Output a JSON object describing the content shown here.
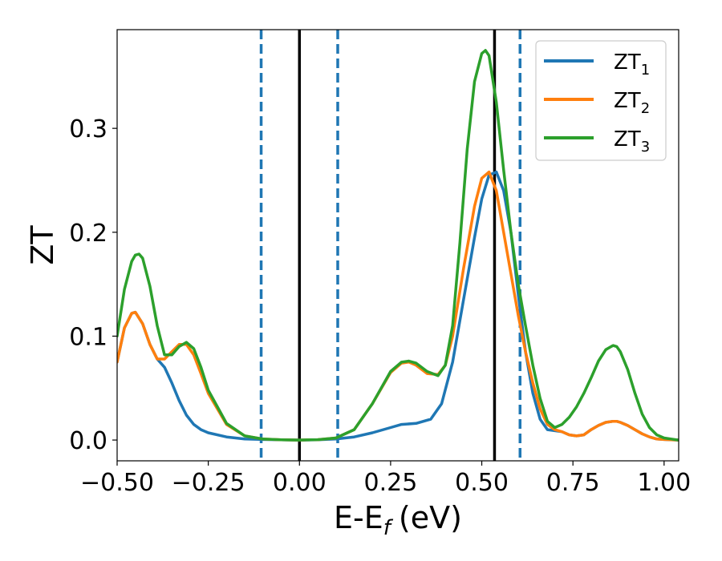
{
  "chart_data": {
    "type": "line",
    "xlabel": "E-E",
    "xlabel_sub": "f",
    "xlabel_unit": "(eV)",
    "ylabel": "ZT",
    "xlim": [
      -0.5,
      1.04
    ],
    "ylim": [
      -0.02,
      0.395
    ],
    "xticks": [
      -0.5,
      -0.25,
      0.0,
      0.25,
      0.5,
      0.75,
      1.0
    ],
    "xtick_labels": [
      "−0.50",
      "−0.25",
      "0.00",
      "0.25",
      "0.50",
      "0.75",
      "1.00"
    ],
    "yticks": [
      0.0,
      0.1,
      0.2,
      0.3
    ],
    "ytick_labels": [
      "0.0",
      "0.1",
      "0.2",
      "0.3"
    ],
    "grid": false,
    "legend_position": "top-right",
    "vlines": [
      {
        "x": -0.105,
        "style": "dashed",
        "color": "#1f77b4"
      },
      {
        "x": 0.0,
        "style": "solid",
        "color": "#000000"
      },
      {
        "x": 0.105,
        "style": "dashed",
        "color": "#1f77b4"
      },
      {
        "x": 0.535,
        "style": "solid",
        "color": "#000000"
      },
      {
        "x": 0.605,
        "style": "dashed",
        "color": "#1f77b4"
      }
    ],
    "series": [
      {
        "name": "ZT",
        "name_sub": "1",
        "color": "#1f77b4",
        "x": [
          -0.5,
          -0.48,
          -0.46,
          -0.45,
          -0.43,
          -0.41,
          -0.39,
          -0.37,
          -0.35,
          -0.33,
          -0.31,
          -0.29,
          -0.27,
          -0.25,
          -0.2,
          -0.15,
          -0.1,
          -0.05,
          0.0,
          0.05,
          0.1,
          0.15,
          0.2,
          0.25,
          0.28,
          0.32,
          0.36,
          0.39,
          0.42,
          0.45,
          0.48,
          0.5,
          0.52,
          0.54,
          0.56,
          0.58,
          0.6,
          0.62,
          0.64,
          0.66,
          0.68,
          0.7,
          0.72,
          0.74,
          0.76,
          0.78,
          0.8,
          0.82,
          0.84,
          0.86,
          0.87,
          0.88,
          0.9,
          0.92,
          0.94,
          0.96,
          0.98,
          1.0,
          1.02,
          1.04
        ],
        "y": [
          0.075,
          0.108,
          0.122,
          0.123,
          0.112,
          0.092,
          0.078,
          0.07,
          0.055,
          0.038,
          0.024,
          0.015,
          0.01,
          0.007,
          0.003,
          0.001,
          0.0005,
          0.0002,
          0.0,
          0.0003,
          0.001,
          0.003,
          0.007,
          0.012,
          0.015,
          0.016,
          0.02,
          0.035,
          0.075,
          0.135,
          0.195,
          0.232,
          0.255,
          0.258,
          0.24,
          0.2,
          0.14,
          0.085,
          0.045,
          0.02,
          0.01,
          0.009,
          0.008,
          0.005,
          0.004,
          0.005,
          0.01,
          0.014,
          0.017,
          0.018,
          0.018,
          0.017,
          0.014,
          0.01,
          0.006,
          0.003,
          0.001,
          0.0005,
          0.0002,
          0.0
        ]
      },
      {
        "name": "ZT",
        "name_sub": "2",
        "color": "#ff7f0e",
        "x": [
          -0.5,
          -0.48,
          -0.46,
          -0.45,
          -0.43,
          -0.41,
          -0.39,
          -0.37,
          -0.35,
          -0.33,
          -0.31,
          -0.29,
          -0.27,
          -0.25,
          -0.2,
          -0.15,
          -0.1,
          -0.05,
          0.0,
          0.05,
          0.1,
          0.15,
          0.2,
          0.25,
          0.28,
          0.3,
          0.32,
          0.35,
          0.38,
          0.4,
          0.42,
          0.45,
          0.48,
          0.5,
          0.52,
          0.54,
          0.56,
          0.58,
          0.6,
          0.62,
          0.64,
          0.66,
          0.68,
          0.7,
          0.72,
          0.74,
          0.76,
          0.78,
          0.8,
          0.82,
          0.84,
          0.86,
          0.87,
          0.88,
          0.9,
          0.92,
          0.94,
          0.96,
          0.98,
          1.0,
          1.02,
          1.04
        ],
        "y": [
          0.075,
          0.108,
          0.122,
          0.123,
          0.112,
          0.092,
          0.078,
          0.078,
          0.085,
          0.092,
          0.092,
          0.082,
          0.064,
          0.045,
          0.015,
          0.004,
          0.001,
          0.0003,
          0.0,
          0.0004,
          0.002,
          0.01,
          0.035,
          0.065,
          0.074,
          0.075,
          0.072,
          0.064,
          0.063,
          0.072,
          0.1,
          0.165,
          0.225,
          0.252,
          0.258,
          0.24,
          0.2,
          0.16,
          0.12,
          0.085,
          0.055,
          0.03,
          0.015,
          0.01,
          0.008,
          0.005,
          0.004,
          0.005,
          0.01,
          0.014,
          0.017,
          0.018,
          0.018,
          0.017,
          0.014,
          0.01,
          0.006,
          0.003,
          0.001,
          0.0005,
          0.0002,
          0.0
        ]
      },
      {
        "name": "ZT",
        "name_sub": "3",
        "color": "#2ca02c",
        "x": [
          -0.5,
          -0.48,
          -0.46,
          -0.45,
          -0.44,
          -0.43,
          -0.41,
          -0.39,
          -0.37,
          -0.35,
          -0.33,
          -0.31,
          -0.29,
          -0.27,
          -0.25,
          -0.2,
          -0.15,
          -0.1,
          -0.05,
          0.0,
          0.05,
          0.1,
          0.15,
          0.2,
          0.25,
          0.28,
          0.3,
          0.32,
          0.35,
          0.38,
          0.4,
          0.42,
          0.44,
          0.46,
          0.48,
          0.5,
          0.51,
          0.52,
          0.54,
          0.56,
          0.58,
          0.6,
          0.62,
          0.64,
          0.66,
          0.68,
          0.7,
          0.72,
          0.74,
          0.76,
          0.78,
          0.8,
          0.82,
          0.84,
          0.86,
          0.87,
          0.88,
          0.9,
          0.92,
          0.94,
          0.96,
          0.98,
          1.0,
          1.02,
          1.04
        ],
        "y": [
          0.1,
          0.145,
          0.172,
          0.178,
          0.179,
          0.175,
          0.148,
          0.11,
          0.082,
          0.082,
          0.09,
          0.094,
          0.088,
          0.07,
          0.048,
          0.016,
          0.004,
          0.001,
          0.0003,
          0.0,
          0.0004,
          0.002,
          0.01,
          0.035,
          0.066,
          0.075,
          0.076,
          0.074,
          0.066,
          0.062,
          0.072,
          0.11,
          0.19,
          0.28,
          0.345,
          0.372,
          0.375,
          0.37,
          0.325,
          0.26,
          0.2,
          0.15,
          0.11,
          0.072,
          0.04,
          0.018,
          0.012,
          0.015,
          0.022,
          0.032,
          0.045,
          0.06,
          0.076,
          0.087,
          0.091,
          0.09,
          0.085,
          0.068,
          0.045,
          0.025,
          0.012,
          0.005,
          0.002,
          0.001,
          0.0
        ]
      }
    ]
  }
}
